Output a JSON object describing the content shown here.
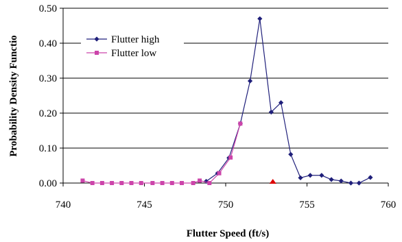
{
  "chart_data": {
    "type": "line",
    "title": "",
    "xlabel": "Flutter Speed (ft/s)",
    "ylabel": "Probability Density Functio",
    "xlim": [
      740,
      760
    ],
    "ylim": [
      0.0,
      0.5
    ],
    "x_ticks": [
      "740",
      "745",
      "750",
      "755",
      "760"
    ],
    "y_ticks": [
      "0.00",
      "0.10",
      "0.20",
      "0.30",
      "0.40",
      "0.50"
    ],
    "grid": "horizontal",
    "legend_position": "top-left",
    "series": [
      {
        "name": "Flutter high",
        "color": "#1f1f7a",
        "marker": "diamond",
        "x": [
          748.8,
          749.5,
          750.2,
          750.9,
          751.5,
          752.1,
          752.8,
          753.4,
          754.0,
          754.6,
          755.2,
          755.9,
          756.5,
          757.1,
          757.7,
          758.2,
          758.9
        ],
        "y": [
          0.005,
          0.028,
          0.072,
          0.17,
          0.292,
          0.47,
          0.203,
          0.23,
          0.082,
          0.015,
          0.022,
          0.022,
          0.01,
          0.006,
          0.0,
          0.0,
          0.016
        ]
      },
      {
        "name": "Flutter low",
        "color": "#cc44aa",
        "marker": "square",
        "x": [
          741.2,
          741.8,
          742.4,
          743.0,
          743.6,
          744.2,
          744.8,
          745.5,
          746.1,
          746.7,
          747.3,
          748.0,
          748.4,
          749.0,
          749.6,
          750.3,
          750.9
        ],
        "y": [
          0.007,
          0.0,
          0.0,
          0.0,
          0.0,
          0.0,
          0.0,
          0.0,
          0.0,
          0.0,
          0.0,
          0.0,
          0.007,
          0.0,
          0.028,
          0.073,
          0.17
        ]
      }
    ],
    "annotations": [
      {
        "type": "triangle-marker",
        "color": "#dd0000",
        "x": 752.9,
        "y": 0.0
      }
    ]
  }
}
